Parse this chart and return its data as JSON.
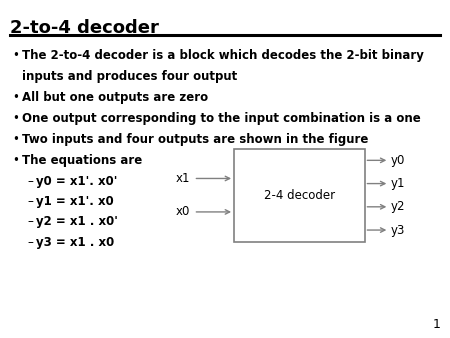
{
  "title": "2-to-4 decoder",
  "background_color": "#ffffff",
  "title_fontsize": 13,
  "body_fontsize": 8.5,
  "eq_fontsize": 8.5,
  "bullet_points": [
    [
      "The 2-to-4 decoder is a block which decodes the 2-bit binary",
      "inputs and produces four output"
    ],
    [
      "All but one outputs are zero"
    ],
    [
      "One output corresponding to the input combination is a one"
    ],
    [
      "Two inputs and four outputs are shown in the figure"
    ],
    [
      "The equations are"
    ]
  ],
  "equations": [
    "y0 = x1'. x0'",
    "y1 = x1'. x0",
    "y2 = x1 . x0'",
    "y3 = x1 . x0"
  ],
  "box_label": "2-4 decoder",
  "inputs": [
    "x1",
    "x0"
  ],
  "outputs": [
    "y0",
    "y1",
    "y2",
    "y3"
  ],
  "page_number": "1",
  "title_color": "#000000",
  "text_color": "#000000",
  "line_color": "#808080",
  "box_edge_color": "#808080"
}
